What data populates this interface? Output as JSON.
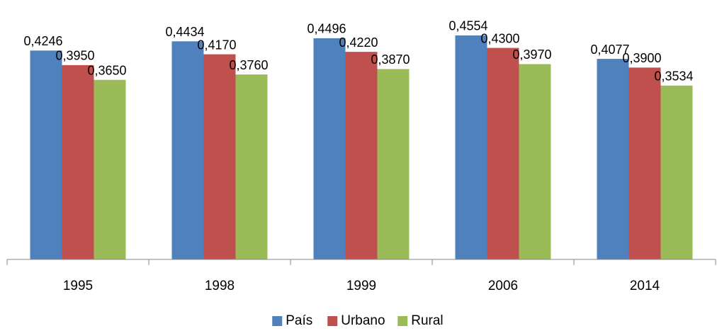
{
  "chart_data": {
    "type": "bar",
    "categories": [
      "1995",
      "1998",
      "1999",
      "2006",
      "2014"
    ],
    "series": [
      {
        "name": "País",
        "color": "#4f81bd",
        "values": [
          0.4246,
          0.4434,
          0.4496,
          0.4554,
          0.4077
        ],
        "value_labels": [
          "0,4246",
          "0,4434",
          "0,4496",
          "0,4554",
          "0,4077"
        ]
      },
      {
        "name": "Urbano",
        "color": "#c0504d",
        "values": [
          0.395,
          0.417,
          0.422,
          0.43,
          0.39
        ],
        "value_labels": [
          "0,3950",
          "0,4170",
          "0,4220",
          "0,4300",
          "0,3900"
        ]
      },
      {
        "name": "Rural",
        "color": "#9bbb59",
        "values": [
          0.365,
          0.376,
          0.387,
          0.397,
          0.3534
        ],
        "value_labels": [
          "0,3650",
          "0,3760",
          "0,3870",
          "0,3970",
          "0,3534"
        ]
      }
    ],
    "ylim": [
      0,
      0.5
    ],
    "legend": "bottom"
  }
}
